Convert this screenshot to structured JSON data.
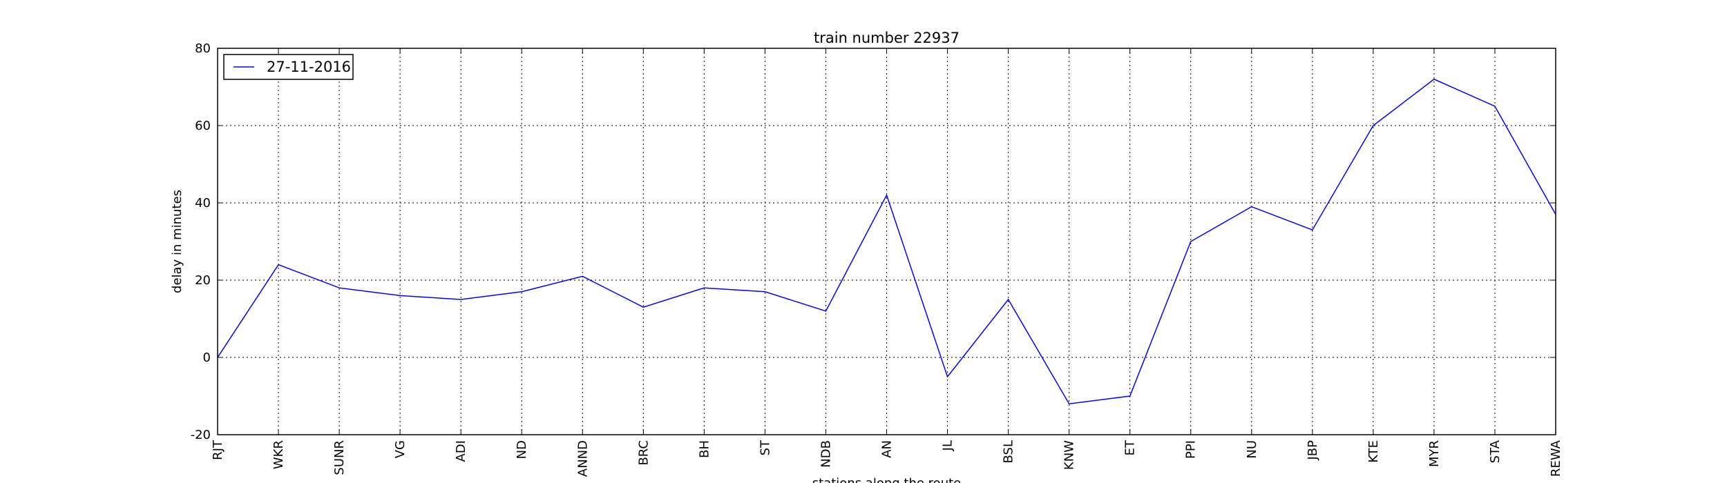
{
  "chart_data": {
    "type": "line",
    "title": "train number 22937",
    "xlabel": "stations along the route",
    "ylabel": "delay in minutes",
    "categories": [
      "RJT",
      "WKR",
      "SUNR",
      "VG",
      "ADI",
      "ND",
      "ANND",
      "BRC",
      "BH",
      "ST",
      "NDB",
      "AN",
      "JL",
      "BSL",
      "KNW",
      "ET",
      "PPI",
      "NU",
      "JBP",
      "KTE",
      "MYR",
      "STA",
      "REWA"
    ],
    "series": [
      {
        "name": "27-11-2016",
        "color": "#0000ff",
        "values": [
          0,
          24,
          18,
          16,
          15,
          17,
          21,
          13,
          18,
          17,
          12,
          42,
          -5,
          15,
          -12,
          -10,
          30,
          39,
          33,
          60,
          72,
          65,
          37
        ]
      }
    ],
    "ylim": [
      -20,
      80
    ],
    "yticks": [
      -20,
      0,
      20,
      40,
      60,
      80
    ],
    "grid": true,
    "legend_position": "top-left"
  }
}
